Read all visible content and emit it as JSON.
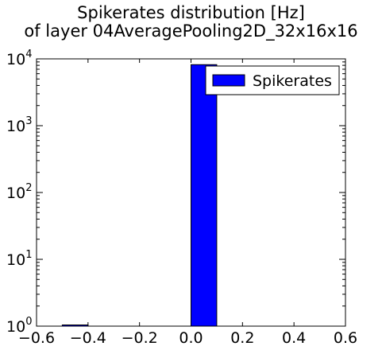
{
  "chart_data": {
    "type": "bar",
    "title": "Spikerates distribution [Hz]",
    "subtitle": "of layer 04AveragePooling2D_32x16x16",
    "xlabel": "",
    "ylabel": "",
    "xlim": [
      -0.6,
      0.6
    ],
    "ylim": [
      1,
      10000
    ],
    "yscale": "log",
    "x_ticks": [
      "−0.6",
      "−0.4",
      "−0.2",
      "0.0",
      "0.2",
      "0.4",
      "0.6"
    ],
    "x_tick_values": [
      -0.6,
      -0.4,
      -0.2,
      0.0,
      0.2,
      0.4,
      0.6
    ],
    "y_ticks": [
      {
        "base": "10",
        "exp": "0",
        "value": 1
      },
      {
        "base": "10",
        "exp": "1",
        "value": 10
      },
      {
        "base": "10",
        "exp": "2",
        "value": 100
      },
      {
        "base": "10",
        "exp": "3",
        "value": 1000
      },
      {
        "base": "10",
        "exp": "4",
        "value": 10000
      }
    ],
    "bins": [
      {
        "x0": -0.5,
        "x1": -0.4,
        "count": 1
      },
      {
        "x0": 0.0,
        "x1": 0.1,
        "count": 8192
      }
    ],
    "legend": {
      "position": "top-right",
      "entries": [
        {
          "label": "Spikerates",
          "color": "#0000ff"
        }
      ]
    },
    "bar_color": "#0000ff",
    "grid": false
  }
}
